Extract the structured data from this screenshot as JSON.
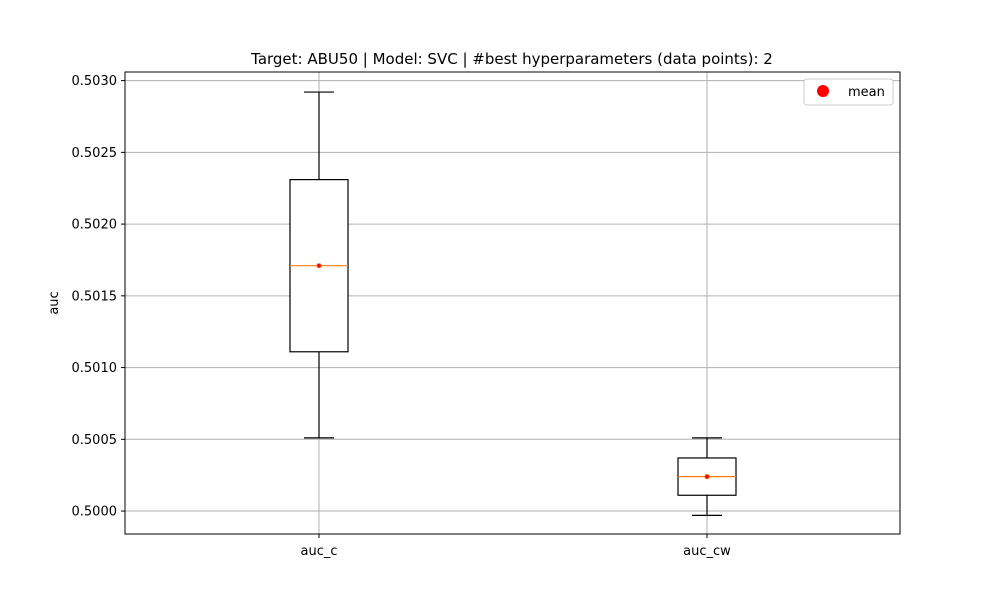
{
  "chart_data": {
    "type": "box",
    "title": "Target: ABU50 | Model: SVC | #best hyperparameters (data points): 2",
    "xlabel": "",
    "ylabel": "auc",
    "ylim": [
      0.49984,
      0.50306
    ],
    "yticks": [
      "0.5000",
      "0.5005",
      "0.5010",
      "0.5015",
      "0.5020",
      "0.5025",
      "0.5030"
    ],
    "ytick_values": [
      0.5,
      0.5005,
      0.501,
      0.5015,
      0.502,
      0.5025,
      0.503
    ],
    "grid": true,
    "legend": {
      "position": "top-right",
      "entries": [
        {
          "label": "mean",
          "color": "#ff0000",
          "marker": "circle"
        }
      ]
    },
    "categories": [
      "auc_c",
      "auc_cw"
    ],
    "boxes": [
      {
        "label": "auc_c",
        "whisker_low": 0.50051,
        "q1": 0.50111,
        "median": 0.50171,
        "q3": 0.50231,
        "whisker_high": 0.50292,
        "mean": 0.50171
      },
      {
        "label": "auc_cw",
        "whisker_low": 0.49997,
        "q1": 0.50011,
        "median": 0.50024,
        "q3": 0.50037,
        "whisker_high": 0.50051,
        "mean": 0.50024
      }
    ],
    "colors": {
      "box": "#000000",
      "median": "#ff7f0e",
      "mean": "#ff0000",
      "grid": "#b0b0b0"
    }
  }
}
